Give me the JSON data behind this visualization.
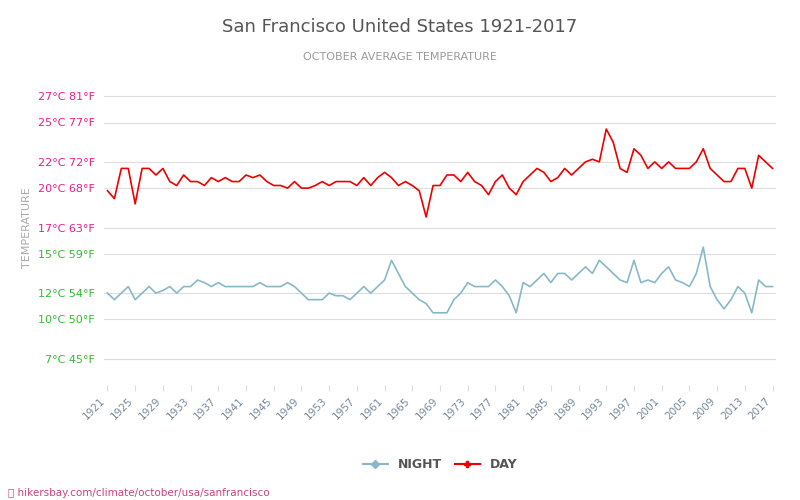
{
  "title": "San Francisco United States 1921-2017",
  "subtitle": "OCTOBER AVERAGE TEMPERATURE",
  "ylabel": "TEMPERATURE",
  "watermark": "⛰ hikersbay.com/climate/october/usa/sanfrancisco",
  "years": [
    1921,
    1922,
    1923,
    1924,
    1925,
    1926,
    1927,
    1928,
    1929,
    1930,
    1931,
    1932,
    1933,
    1934,
    1935,
    1936,
    1937,
    1938,
    1939,
    1940,
    1941,
    1942,
    1943,
    1944,
    1945,
    1946,
    1947,
    1948,
    1949,
    1950,
    1951,
    1952,
    1953,
    1954,
    1955,
    1956,
    1957,
    1958,
    1959,
    1960,
    1961,
    1962,
    1963,
    1964,
    1965,
    1966,
    1967,
    1968,
    1969,
    1970,
    1971,
    1972,
    1973,
    1974,
    1975,
    1976,
    1977,
    1978,
    1979,
    1980,
    1981,
    1982,
    1983,
    1984,
    1985,
    1986,
    1987,
    1988,
    1989,
    1990,
    1991,
    1992,
    1993,
    1994,
    1995,
    1996,
    1997,
    1998,
    1999,
    2000,
    2001,
    2002,
    2003,
    2004,
    2005,
    2006,
    2007,
    2008,
    2009,
    2010,
    2011,
    2012,
    2013,
    2014,
    2015,
    2016,
    2017
  ],
  "day_temps": [
    19.8,
    19.2,
    21.5,
    21.5,
    18.8,
    21.5,
    21.5,
    21.0,
    21.5,
    20.5,
    20.2,
    21.0,
    20.5,
    20.5,
    20.2,
    20.8,
    20.5,
    20.8,
    20.5,
    20.5,
    21.0,
    20.8,
    21.0,
    20.5,
    20.2,
    20.2,
    20.0,
    20.5,
    20.0,
    20.0,
    20.2,
    20.5,
    20.2,
    20.5,
    20.5,
    20.5,
    20.2,
    20.8,
    20.2,
    20.8,
    21.2,
    20.8,
    20.2,
    20.5,
    20.2,
    19.8,
    17.8,
    20.2,
    20.2,
    21.0,
    21.0,
    20.5,
    21.2,
    20.5,
    20.2,
    19.5,
    20.5,
    21.0,
    20.0,
    19.5,
    20.5,
    21.0,
    21.5,
    21.2,
    20.5,
    20.8,
    21.5,
    21.0,
    21.5,
    22.0,
    22.2,
    22.0,
    24.5,
    23.5,
    21.5,
    21.2,
    23.0,
    22.5,
    21.5,
    22.0,
    21.5,
    22.0,
    21.5,
    21.5,
    21.5,
    22.0,
    23.0,
    21.5,
    21.0,
    20.5,
    20.5,
    21.5,
    21.5,
    20.0,
    22.5,
    22.0,
    21.5
  ],
  "night_temps": [
    12.0,
    11.5,
    12.0,
    12.5,
    11.5,
    12.0,
    12.5,
    12.0,
    12.2,
    12.5,
    12.0,
    12.5,
    12.5,
    13.0,
    12.8,
    12.5,
    12.8,
    12.5,
    12.5,
    12.5,
    12.5,
    12.5,
    12.8,
    12.5,
    12.5,
    12.5,
    12.8,
    12.5,
    12.0,
    11.5,
    11.5,
    11.5,
    12.0,
    11.8,
    11.8,
    11.5,
    12.0,
    12.5,
    12.0,
    12.5,
    13.0,
    14.5,
    13.5,
    12.5,
    12.0,
    11.5,
    11.2,
    10.5,
    10.5,
    10.5,
    11.5,
    12.0,
    12.8,
    12.5,
    12.5,
    12.5,
    13.0,
    12.5,
    11.8,
    10.5,
    12.8,
    12.5,
    13.0,
    13.5,
    12.8,
    13.5,
    13.5,
    13.0,
    13.5,
    14.0,
    13.5,
    14.5,
    14.0,
    13.5,
    13.0,
    12.8,
    14.5,
    12.8,
    13.0,
    12.8,
    13.5,
    14.0,
    13.0,
    12.8,
    12.5,
    13.5,
    15.5,
    12.5,
    11.5,
    10.8,
    11.5,
    12.5,
    12.0,
    10.5,
    13.0,
    12.5,
    12.5
  ],
  "yticks_c": [
    7,
    10,
    12,
    15,
    17,
    20,
    22,
    25,
    27
  ],
  "yticks_f": [
    45,
    50,
    54,
    59,
    63,
    68,
    72,
    77,
    81
  ],
  "ytick_colors": [
    "#33bb33",
    "#33bb33",
    "#33bb33",
    "#33bb33",
    "#e91e8c",
    "#e91e8c",
    "#e91e8c",
    "#e91e8c",
    "#e91e8c"
  ],
  "ymin": 5,
  "ymax": 29,
  "day_color": "#ee0000",
  "night_color": "#88b8c8",
  "title_color": "#555555",
  "subtitle_color": "#999999",
  "ylabel_color": "#aaaaaa",
  "bg_color": "#ffffff",
  "grid_color": "#dddddd",
  "xtick_color": "#778899",
  "watermark_color": "#cc4477"
}
